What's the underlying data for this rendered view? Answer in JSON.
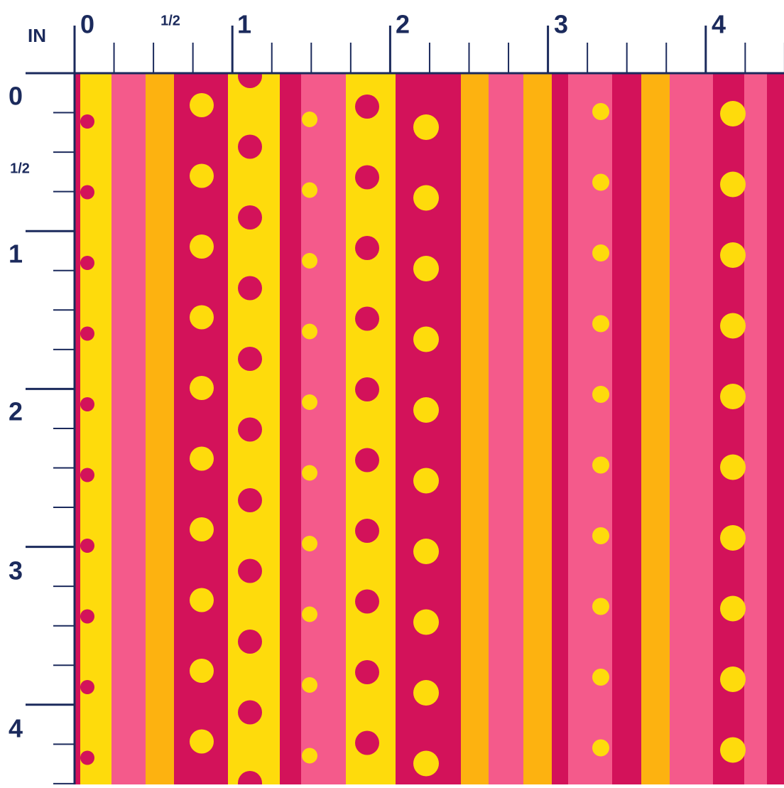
{
  "ruler": {
    "unit": "IN",
    "top": [
      "0",
      "1/2",
      "1",
      "2",
      "3",
      "4"
    ],
    "left": [
      "0",
      "1/2",
      "1",
      "2",
      "3",
      "4"
    ]
  }
}
